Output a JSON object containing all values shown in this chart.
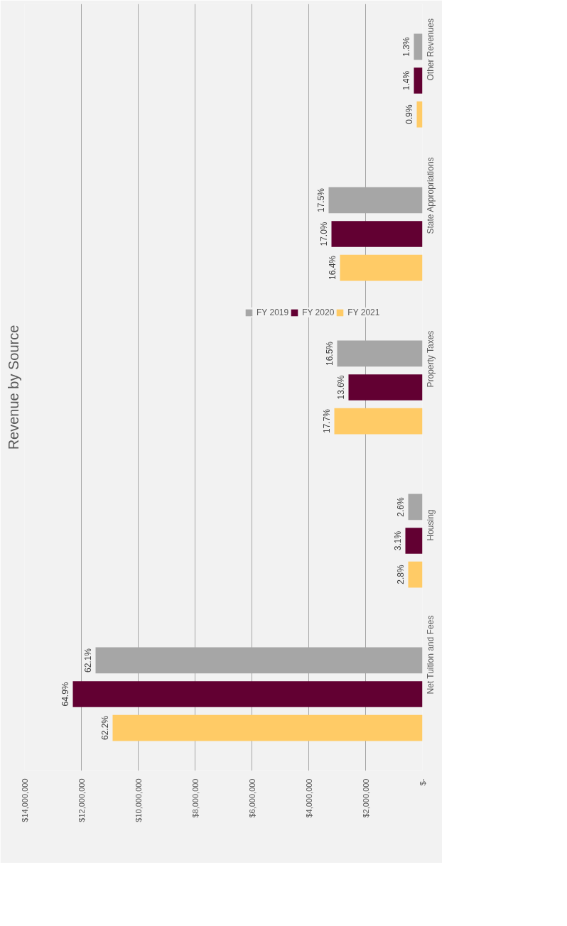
{
  "chart_data": {
    "type": "bar",
    "orientation": "horizontal",
    "title": "Revenue by Source",
    "categories": [
      "Other Revenues",
      "State Appropriations",
      "Property Taxes",
      "Housing",
      "Net Tuition and Fees"
    ],
    "series": [
      {
        "name": "FY 2019",
        "color": "#a6a6a6",
        "values": [
          300000,
          3300000,
          3000000,
          500000,
          11500000
        ]
      },
      {
        "name": "FY 2020",
        "color": "#620032",
        "values": [
          300000,
          3200000,
          2600000,
          600000,
          12300000
        ]
      },
      {
        "name": "FY 2021",
        "color": "#ffcb66",
        "values": [
          200000,
          2900000,
          3100000,
          500000,
          10900000
        ]
      }
    ],
    "annotations": [
      "1.3%",
      "17.5%",
      "16.5%",
      "2.6%",
      "62.1%",
      "1.4%",
      "17.0%",
      "13.6%",
      "3.1%",
      "64.9%",
      "0.9%",
      "16.4%",
      "17.7%",
      "2.8%",
      "62.2%"
    ],
    "xlim": [
      14000000,
      0
    ],
    "xticks": [
      {
        "value": 0,
        "label": "$-"
      },
      {
        "value": 2000000,
        "label": "$2,000,000"
      },
      {
        "value": 4000000,
        "label": "$4,000,000"
      },
      {
        "value": 6000000,
        "label": "$6,000,000"
      },
      {
        "value": 8000000,
        "label": "$8,000,000"
      },
      {
        "value": 10000000,
        "label": "$10,000,000"
      },
      {
        "value": 12000000,
        "label": "$12,000,000"
      },
      {
        "value": 14000000,
        "label": "$14,000,000"
      }
    ],
    "grid": "x",
    "legend": "right"
  }
}
